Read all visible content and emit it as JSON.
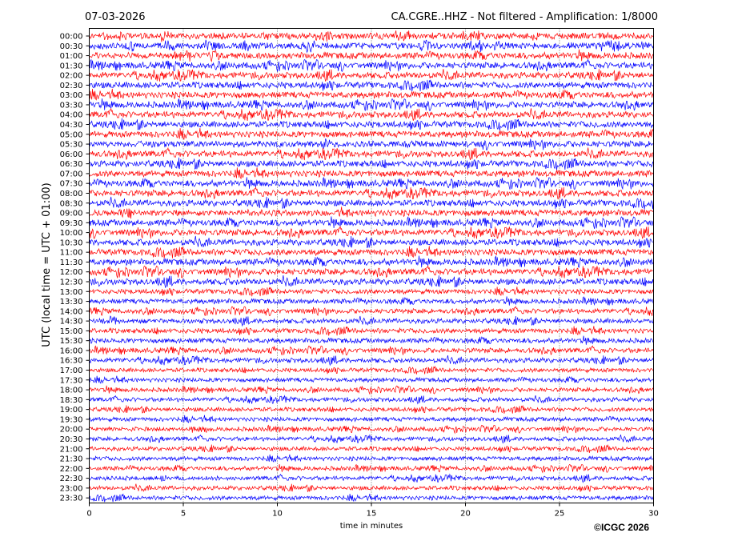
{
  "header": {
    "date": "07-03-2026",
    "title": "CA.CGRE..HHZ - Not filtered - Amplification: 1/8000"
  },
  "chart_data": {
    "type": "line",
    "subtype": "helicorder",
    "xlabel": "time in minutes",
    "ylabel": "UTC (local time = UTC + 01:00)",
    "xlim": [
      0,
      30
    ],
    "xticks": [
      0,
      5,
      10,
      15,
      20,
      25,
      30
    ],
    "grid": "vertical-dotted",
    "trace_colors": [
      "#ff0000",
      "#0000ff"
    ],
    "rows": [
      "00:00",
      "00:30",
      "01:00",
      "01:30",
      "02:00",
      "02:30",
      "03:00",
      "03:30",
      "04:00",
      "04:30",
      "05:00",
      "05:30",
      "06:00",
      "06:30",
      "07:00",
      "07:30",
      "08:00",
      "08:30",
      "09:00",
      "09:30",
      "10:00",
      "10:30",
      "11:00",
      "11:30",
      "12:00",
      "12:30",
      "13:00",
      "13:30",
      "14:00",
      "14:30",
      "15:00",
      "15:30",
      "16:00",
      "16:30",
      "17:00",
      "17:30",
      "18:00",
      "18:30",
      "19:00",
      "19:30",
      "20:00",
      "20:30",
      "21:00",
      "21:30",
      "22:00",
      "22:30",
      "23:00",
      "23:30"
    ],
    "amplitude": [
      4.5,
      4.5,
      4.5,
      4.5,
      4.5,
      4.5,
      4.5,
      4.5,
      4.5,
      4.5,
      4.5,
      4.5,
      4.5,
      4.5,
      4.5,
      4.5,
      4.5,
      4.5,
      4.5,
      4.5,
      4.5,
      4.5,
      4.5,
      4.5,
      4.5,
      4.5,
      3.5,
      3.5,
      3.5,
      3.5,
      3.5,
      3.5,
      3.5,
      3.5,
      3.0,
      3.0,
      3.0,
      3.0,
      3.0,
      3.0,
      3.0,
      3.0,
      3.0,
      3.0,
      3.0,
      3.0,
      3.0,
      3.0
    ]
  },
  "footer": {
    "copyright": "©ICGC 2026"
  }
}
